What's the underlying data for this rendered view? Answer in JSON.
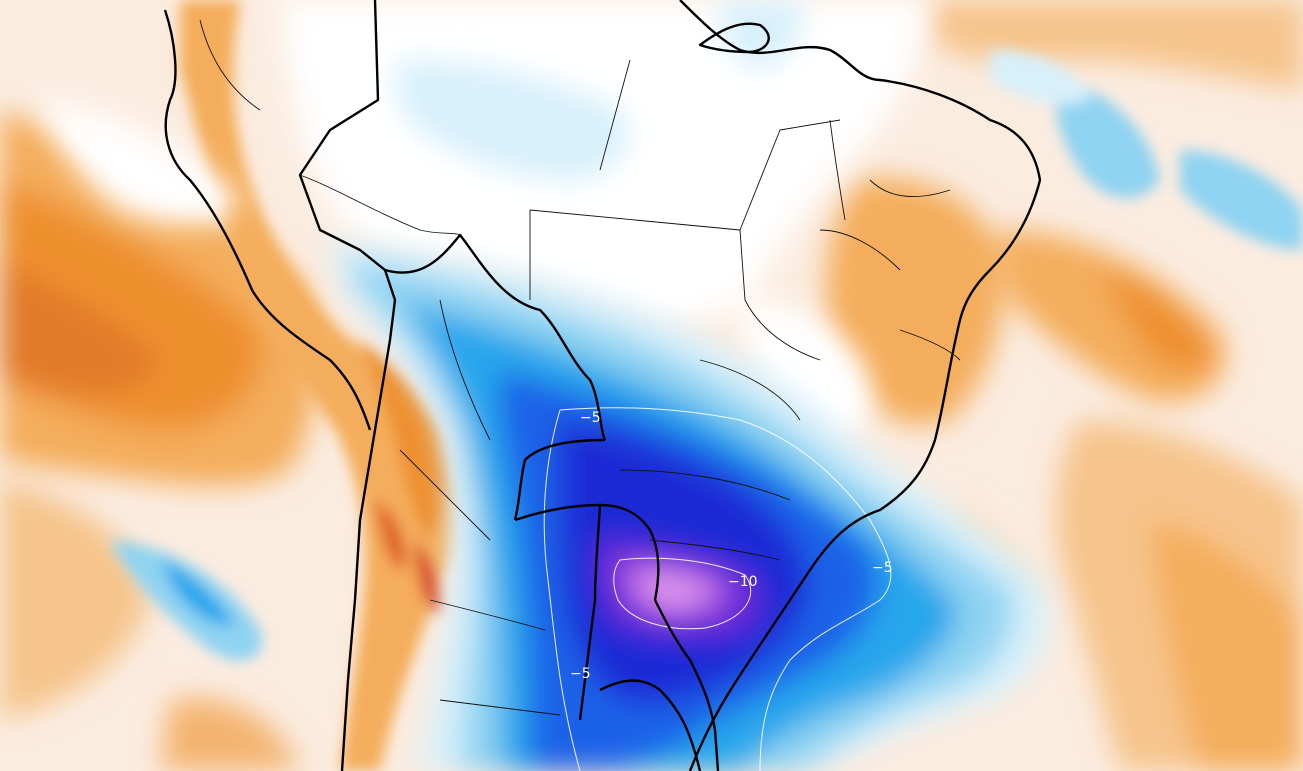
{
  "map": {
    "contour_labels": [
      {
        "id": "label-minus5-north",
        "text": "−5"
      },
      {
        "id": "label-minus10-center",
        "text": "−10"
      },
      {
        "id": "label-minus5-east",
        "text": "−5"
      },
      {
        "id": "label-minus5-south",
        "text": "−5"
      }
    ],
    "colors": {
      "ocean_warm_pale": "#fbe6cf",
      "warm_light": "#f8cf9c",
      "warm_mid": "#f4ad5c",
      "warm_strong": "#ee8f2e",
      "warm_hot": "#e0642a",
      "warm_extreme": "#c9302a",
      "neutral": "#ffffff",
      "cool_pale": "#d7f0fb",
      "cool_light": "#8fd3f2",
      "cool_mid": "#27a6ec",
      "cool_strong": "#1a62e8",
      "cool_deep": "#1f2bd6",
      "cool_extreme": "#6e2ad8",
      "cool_peak": "#d37ee8",
      "borders": "#000000"
    }
  }
}
